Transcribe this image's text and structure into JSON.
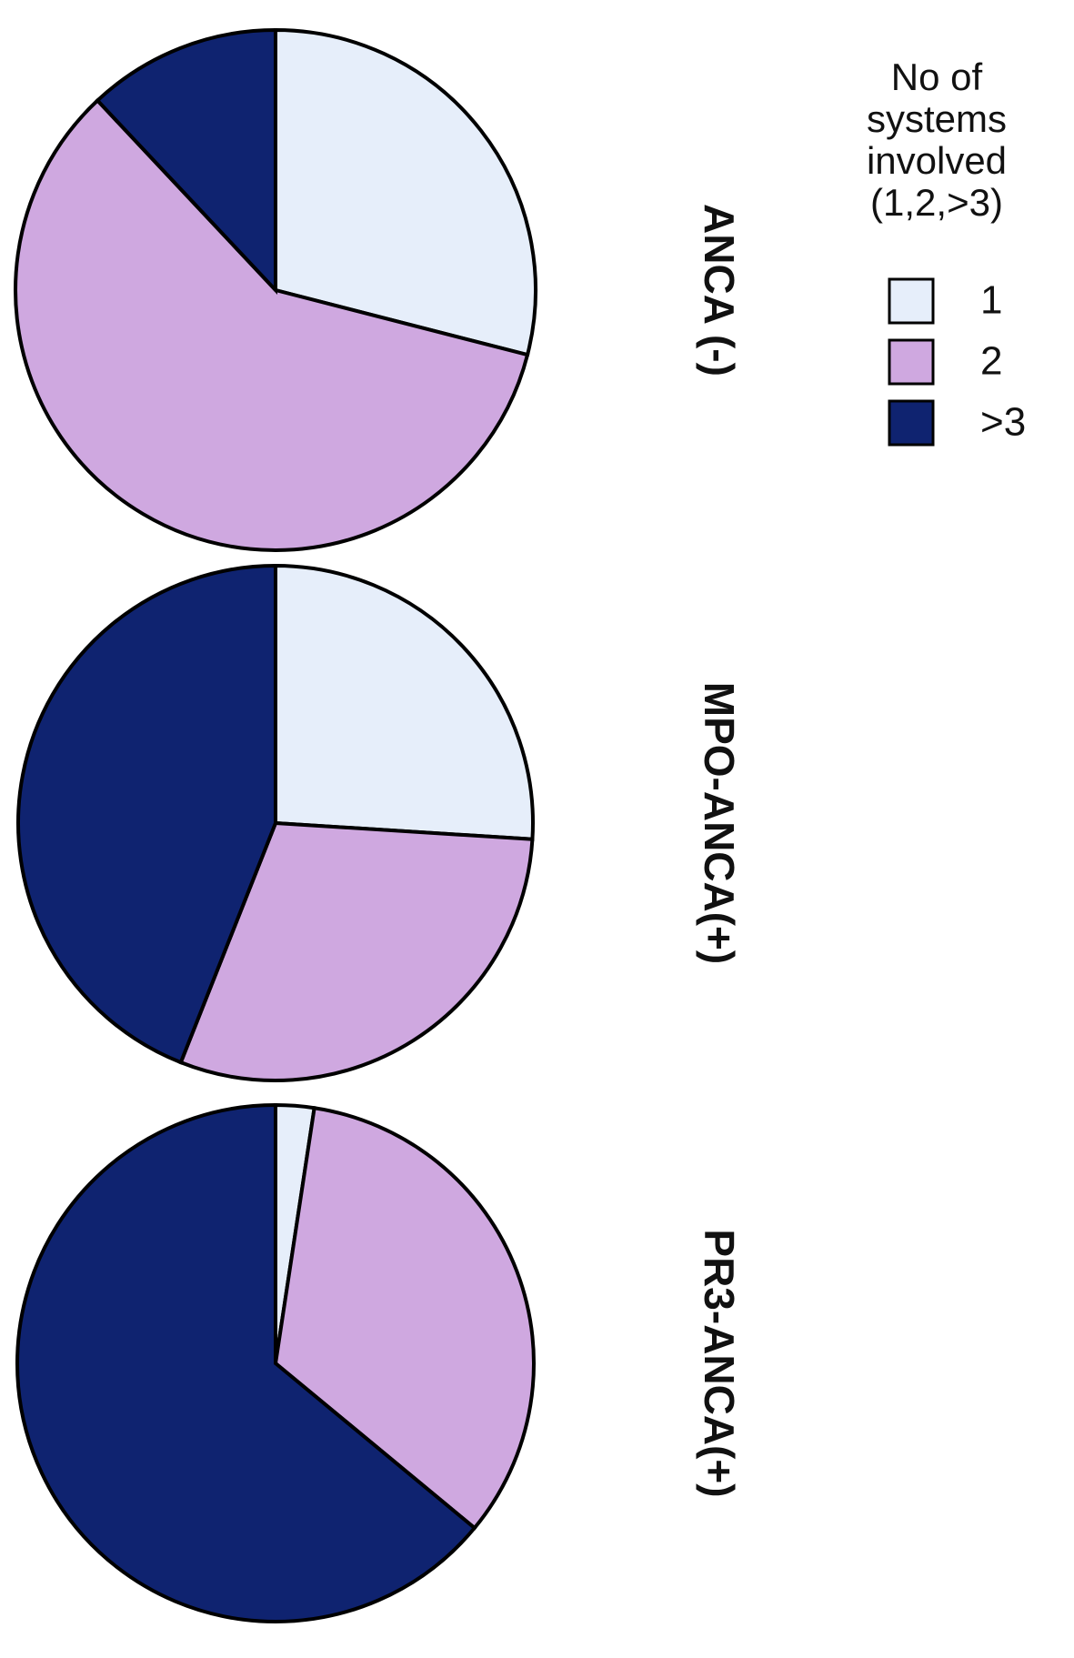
{
  "chart_data": [
    {
      "type": "pie",
      "title": "ANCA (-)",
      "categories": [
        "1",
        "2",
        ">3"
      ],
      "values": [
        29,
        59,
        12
      ],
      "colors": [
        "#e6eefa",
        "#cfa8e0",
        "#0f2370"
      ],
      "legend_title": "No of systems involved (1,2,>3)"
    },
    {
      "type": "pie",
      "title": "MPO-ANCA(+)",
      "categories": [
        "1",
        "2",
        ">3"
      ],
      "values": [
        26,
        30,
        44
      ],
      "colors": [
        "#e6eefa",
        "#cfa8e0",
        "#0f2370"
      ]
    },
    {
      "type": "pie",
      "title": "PR3-ANCA(+)",
      "categories": [
        "1",
        "2",
        ">3"
      ],
      "values": [
        2.4,
        33.6,
        64
      ],
      "colors": [
        "#e6eefa",
        "#cfa8e0",
        "#0f2370"
      ]
    }
  ]
}
